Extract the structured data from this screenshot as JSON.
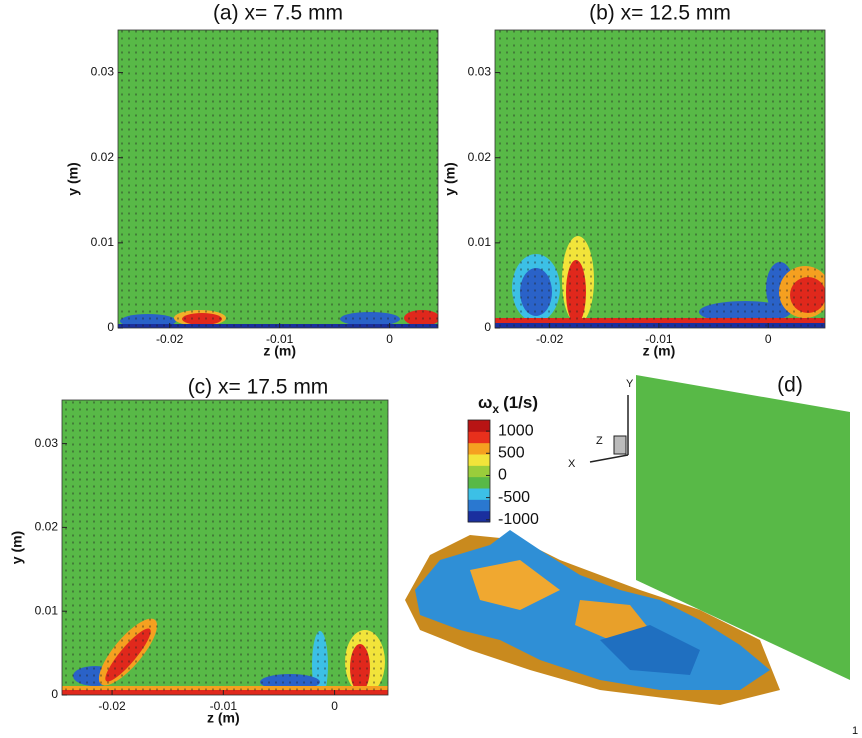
{
  "chart_data": [
    {
      "type": "contour",
      "title": "(a) x= 7.5 mm",
      "xlabel": "z (m)",
      "ylabel": "y (m)",
      "xlim": [
        -0.0247,
        0.0044
      ],
      "ylim": [
        0,
        0.035
      ],
      "xticks": [
        -0.02,
        -0.01,
        0
      ],
      "yticks": [
        0,
        0.01,
        0.02,
        0.03
      ]
    },
    {
      "type": "contour",
      "title": "(b) x= 12.5 mm",
      "xlabel": "z (m)",
      "ylabel": "y (m)",
      "xlim": [
        -0.025,
        0.0052
      ],
      "ylim": [
        0,
        0.035
      ],
      "xticks": [
        -0.02,
        -0.01,
        0
      ],
      "yticks": [
        0,
        0.01,
        0.02,
        0.03
      ]
    },
    {
      "type": "contour",
      "title": "(c) x= 17.5 mm",
      "xlabel": "z (m)",
      "ylabel": "y (m)",
      "xlim": [
        -0.0245,
        0.0048
      ],
      "ylim": [
        0,
        0.0352
      ],
      "xticks": [
        -0.02,
        -0.01,
        0
      ],
      "yticks": [
        0,
        0.01,
        0.02,
        0.03
      ]
    },
    {
      "type": "isosurface",
      "title": "(d)",
      "axes_labels": [
        "Y",
        "Z",
        "X"
      ],
      "colorbar": {
        "title": "ω",
        "subscript": "x",
        "unit": "(1/s)",
        "clim": [
          -1050,
          1250
        ],
        "ticks": [
          1000,
          500,
          0,
          -500,
          -1000
        ],
        "colors": [
          "#1a2f9e",
          "#2a78d0",
          "#3cc0e6",
          "#58b947",
          "#9acd3b",
          "#f2e43a",
          "#f5a020",
          "#e8301c",
          "#b81414"
        ]
      }
    }
  ],
  "footer": "1"
}
